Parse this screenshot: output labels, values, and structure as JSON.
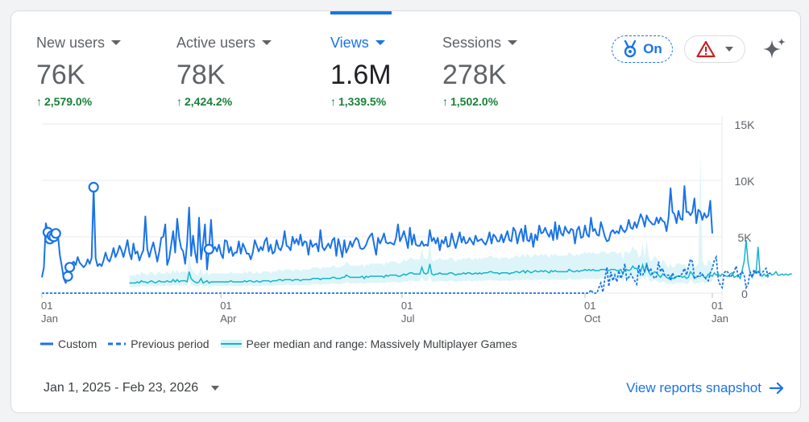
{
  "metrics": [
    {
      "label": "New users",
      "value": "76K",
      "change": "2,579.0%",
      "active": false
    },
    {
      "label": "Active users",
      "value": "78K",
      "change": "2,424.2%",
      "active": false
    },
    {
      "label": "Views",
      "value": "1.6M",
      "change": "1,339.5%",
      "active": true
    },
    {
      "label": "Sessions",
      "value": "278K",
      "change": "1,502.0%",
      "active": false
    }
  ],
  "toolbar": {
    "insights_label": "On",
    "warning_icon": "warning-icon",
    "ai_icon": "sparkle-icon"
  },
  "colors": {
    "primary": "#1a73e8",
    "positive": "#188038",
    "peer": "#12b5cb",
    "peer_band": "#d7f3f7",
    "warning": "#c5221f"
  },
  "legend": {
    "custom": "Custom",
    "previous": "Previous period",
    "peer": "Peer median and range: Massively Multiplayer Games"
  },
  "date_range": "Jan 1, 2025 - Feb 23, 2026",
  "snapshot_link": "View reports snapshot",
  "chart_data": {
    "type": "line",
    "y_ticks": [
      "15K",
      "10K",
      "5K",
      "0"
    ],
    "ylim": [
      0,
      15000
    ],
    "x_ticks": [
      {
        "day": "01",
        "month": "Jan"
      },
      {
        "day": "01",
        "month": "Apr"
      },
      {
        "day": "01",
        "month": "Jul"
      },
      {
        "day": "01",
        "month": "Oct"
      },
      {
        "day": "01",
        "month": "Jan"
      }
    ],
    "series": [
      {
        "name": "Custom",
        "style": "solid",
        "values": [
          1400,
          2300,
          6200,
          5400,
          4800,
          5100,
          5000,
          5300,
          5300,
          3400,
          2400,
          1300,
          900,
          1500,
          2300,
          2600,
          2800,
          2500,
          3200,
          2700,
          2500,
          2300,
          2500,
          3000,
          2600,
          3100,
          9400,
          3100,
          2400,
          2600,
          2400,
          2900,
          3600,
          3000,
          2800,
          3300,
          4000,
          3200,
          3600,
          4200,
          3800,
          3200,
          3900,
          4700,
          3600,
          3000,
          4400,
          3500,
          3700,
          2900,
          3400,
          3800,
          6800,
          3900,
          3200,
          3900,
          4500,
          3700,
          2800,
          3700,
          4900,
          5000,
          6100,
          2500,
          3100,
          4300,
          5500,
          3600,
          6600,
          4900,
          4000,
          3700,
          2600,
          4400,
          7600,
          3300,
          5100,
          3600,
          2700,
          6700,
          3000,
          4400,
          6100,
          2100,
          3900,
          6500,
          3800,
          4100,
          3700,
          4300,
          3500,
          3100,
          4700,
          4600,
          3600,
          4100,
          3300,
          3600,
          3600,
          4600,
          3500,
          4400,
          4000,
          3500,
          3500,
          3000,
          3600,
          4700,
          4200,
          3700,
          4100,
          3800,
          4600,
          4900,
          3700,
          4300,
          3500,
          3700,
          4700,
          4000,
          3800,
          4300,
          5500,
          4200,
          4100,
          3800,
          5000,
          4400,
          4800,
          4300,
          5200,
          4200,
          4600,
          4500,
          3400,
          4700,
          4100,
          4300,
          4400,
          3700,
          5600,
          4100,
          3800,
          4100,
          4400,
          4000,
          4700,
          4900,
          3300,
          4800,
          4100,
          3200,
          4700,
          3600,
          4000,
          4600,
          4100,
          4600,
          4900,
          4700,
          4000,
          3900,
          4000,
          4300,
          4800,
          5100,
          5300,
          4300,
          3400,
          4900,
          4400,
          4800,
          5300,
          4500,
          4400,
          4500,
          4400,
          4300,
          4900,
          6100,
          4600,
          5000,
          5500,
          4800,
          4000,
          5800,
          4300,
          5200,
          4300,
          4200,
          4200,
          4600,
          4200,
          4300,
          4200,
          5600,
          4600,
          4900,
          4400,
          4900,
          3800,
          4700,
          4400,
          5000,
          4100,
          4200,
          5300,
          4600,
          4000,
          4700,
          5400,
          4500,
          5000,
          4400,
          4500,
          4900,
          4600,
          4300,
          5100,
          4600,
          4700,
          4800,
          4500,
          4300,
          4700,
          5400,
          4400,
          5200,
          5000,
          4600,
          4600,
          5200,
          4500,
          5000,
          5500,
          4700,
          4600,
          5800,
          5500,
          4400,
          5200,
          5700,
          4600,
          6000,
          4700,
          4600,
          5300,
          4100,
          5200,
          4700,
          6000,
          5300,
          5400,
          5800,
          5300,
          5000,
          5600,
          4700,
          6300,
          4800,
          6000,
          5300,
          5100,
          5900,
          5500,
          5300,
          5700,
          5600,
          4400,
          5600,
          5900,
          4900,
          5000,
          6000,
          5200,
          5000,
          6700,
          5500,
          5700,
          5200,
          5100,
          6300,
          5700,
          5000,
          4600,
          4700,
          5400,
          5600,
          5300,
          5500,
          5300,
          6000,
          5600,
          5400,
          5700,
          6500,
          5800,
          5700,
          6300,
          5800,
          6400,
          7000,
          6600,
          5900,
          6900,
          6500,
          6300,
          6100,
          6100,
          6700,
          6200,
          6700,
          6400,
          6300,
          5500,
          6700,
          9300,
          7200,
          7000,
          6200,
          7300,
          6600,
          6500,
          9500,
          7200,
          7200,
          6900,
          7200,
          8400,
          6200,
          7400,
          7200,
          6500,
          7100,
          6700,
          6900,
          8200,
          5300
        ],
        "markers": [
          {
            "index": 3
          },
          {
            "index": 4
          },
          {
            "index": 5
          },
          {
            "index": 6
          },
          {
            "index": 7
          },
          {
            "index": 13
          },
          {
            "index": 14
          },
          {
            "index": 26
          },
          {
            "index": 84
          }
        ]
      },
      {
        "name": "Previous period",
        "style": "dashed",
        "values": [
          0,
          0,
          0,
          0,
          0,
          0,
          0,
          0,
          0,
          0,
          0,
          0,
          0,
          0,
          0,
          0,
          0,
          0,
          0,
          0,
          0,
          0,
          0,
          0,
          0,
          0,
          0,
          0,
          0,
          0,
          0,
          0,
          0,
          0,
          0,
          0,
          0,
          0,
          0,
          0,
          0,
          0,
          0,
          0,
          0,
          0,
          0,
          0,
          0,
          0,
          0,
          0,
          0,
          0,
          0,
          0,
          0,
          0,
          0,
          0,
          0,
          0,
          0,
          0,
          0,
          0,
          0,
          0,
          0,
          0,
          0,
          0,
          0,
          0,
          0,
          0,
          0,
          0,
          0,
          0,
          0,
          0,
          0,
          0,
          0,
          0,
          0,
          0,
          0,
          0,
          0,
          0,
          0,
          0,
          0,
          0,
          0,
          0,
          0,
          0,
          0,
          0,
          0,
          0,
          0,
          0,
          0,
          0,
          0,
          0,
          0,
          0,
          0,
          0,
          0,
          0,
          0,
          0,
          0,
          0,
          0,
          0,
          0,
          0,
          0,
          0,
          0,
          0,
          0,
          0,
          0,
          0,
          0,
          0,
          0,
          0,
          0,
          0,
          0,
          0,
          0,
          0,
          0,
          0,
          0,
          0,
          0,
          0,
          0,
          0,
          0,
          0,
          0,
          0,
          0,
          0,
          0,
          0,
          0,
          0,
          0,
          0,
          0,
          0,
          0,
          0,
          0,
          0,
          0,
          0,
          0,
          0,
          0,
          0,
          0,
          0,
          0,
          0,
          0,
          0,
          0,
          0,
          0,
          0,
          0,
          0,
          0,
          0,
          0,
          0,
          0,
          0,
          0,
          0,
          0,
          0,
          0,
          0,
          0,
          0,
          0,
          0,
          0,
          0,
          0,
          0,
          0,
          0,
          0,
          0,
          0,
          0,
          0,
          0,
          0,
          0,
          0,
          0,
          0,
          0,
          0,
          0,
          0,
          0,
          0,
          0,
          0,
          0,
          0,
          0,
          0,
          0,
          0,
          0,
          0,
          0,
          0,
          0,
          0,
          0,
          0,
          0,
          0,
          0,
          0,
          0,
          0,
          0,
          0,
          0,
          0,
          0,
          0,
          0,
          0,
          0,
          0,
          0,
          0,
          0,
          0,
          0,
          0,
          0,
          0,
          0,
          0,
          0,
          0,
          0,
          0,
          0,
          0,
          0,
          0,
          0,
          300,
          0,
          0,
          0,
          500,
          900,
          100,
          1300,
          2300,
          600,
          1900,
          1100,
          1600,
          1000,
          2000,
          1300,
          1700,
          2600,
          1200,
          1400,
          1700,
          1400,
          1100,
          800,
          2500,
          1600,
          1600,
          2000,
          2400,
          1900,
          2200,
          1600,
          1300,
          1500,
          2800,
          1900,
          2200,
          1600,
          1600,
          1600,
          1100,
          1800,
          1400,
          1400,
          1500,
          1500,
          1800,
          2200,
          1600,
          2300,
          3000,
          2800,
          1400,
          1500,
          1500,
          1800,
          1600,
          1500,
          1200,
          1100,
          1800,
          2200,
          2900,
          3200,
          1200,
          700,
          500,
          1800,
          2000,
          1800,
          1400,
          1600,
          1900,
          2400,
          1500,
          1700,
          1900,
          1600,
          500,
          800,
          1900,
          1400,
          2100,
          1700,
          2000,
          1600,
          1800,
          2000,
          2200,
          1500,
          1800
        ]
      },
      {
        "name": "Peer median",
        "style": "solid",
        "values": [
          0,
          0,
          0,
          0,
          0,
          0,
          0,
          0,
          0,
          0,
          0,
          0,
          0,
          0,
          0,
          0,
          0,
          0,
          0,
          0,
          0,
          0,
          0,
          0,
          0,
          0,
          0,
          0,
          0,
          0,
          0,
          0,
          0,
          0,
          0,
          0,
          0,
          0,
          0,
          0,
          0,
          0,
          0,
          0,
          900,
          900,
          900,
          900,
          1000,
          900,
          1100,
          1000,
          1000,
          900,
          1000,
          1100,
          1000,
          900,
          1000,
          1100,
          1000,
          1000,
          1000,
          1100,
          1000,
          1000,
          1200,
          1000,
          1200,
          1000,
          1100,
          1100,
          1100,
          1000,
          1900,
          1300,
          1100,
          1000,
          900,
          1000,
          1300,
          900,
          1000,
          1100,
          900,
          1000,
          1000,
          1000,
          1000,
          1000,
          1000,
          1000,
          1000,
          1000,
          1000,
          1100,
          1000,
          1000,
          1000,
          1000,
          1000,
          1000,
          1100,
          1000,
          1100,
          1100,
          1000,
          1000,
          1100,
          1000,
          1000,
          1100,
          1100,
          1100,
          1100,
          1000,
          1100,
          1100,
          1100,
          1200,
          1200,
          1100,
          1200,
          1200,
          1200,
          1200,
          1100,
          1200,
          1200,
          1200,
          1100,
          1200,
          1200,
          1200,
          1200,
          1200,
          1300,
          1300,
          1300,
          1300,
          1200,
          1300,
          1300,
          1300,
          1300,
          1300,
          1400,
          1400,
          1300,
          1300,
          1300,
          1400,
          1400,
          1600,
          1500,
          1400,
          1400,
          1400,
          1400,
          1400,
          1400,
          1500,
          1300,
          1500,
          1400,
          1500,
          1500,
          1500,
          1500,
          1500,
          1500,
          1500,
          1400,
          1600,
          1500,
          1600,
          1600,
          1600,
          1600,
          1500,
          1500,
          1600,
          1700,
          1600,
          1700,
          1800,
          1800,
          1700,
          1700,
          1700,
          1700,
          2300,
          1800,
          1700,
          1800,
          2600,
          1700,
          1600,
          1700,
          1700,
          1800,
          1700,
          1700,
          1700,
          1700,
          1800,
          1800,
          1700,
          1600,
          1700,
          1700,
          1700,
          1800,
          1700,
          1800,
          1800,
          1700,
          1700,
          1800,
          1700,
          1800,
          1700,
          1800,
          1800,
          1800,
          1900,
          1900,
          1800,
          1800,
          1800,
          1700,
          1800,
          1800,
          1800,
          1800,
          1700,
          1800,
          1800,
          1900,
          1900,
          1800,
          1900,
          2000,
          1800,
          2000,
          1900,
          1800,
          1900,
          2000,
          1900,
          1900,
          2000,
          1900,
          2000,
          1900,
          1800,
          2000,
          1900,
          2000,
          1900,
          1900,
          1900,
          1900,
          1900,
          1900,
          2100,
          2000,
          1900,
          1900,
          2000,
          1900,
          2000,
          2000,
          2100,
          2000,
          2100,
          2000,
          2100,
          2000,
          2000,
          2000,
          2100,
          2100,
          2100,
          2000,
          2000,
          2100,
          2100,
          2100,
          2000,
          2000,
          2100,
          1700,
          2100,
          2100,
          2000,
          2100,
          2400,
          2200,
          2200,
          1800,
          1900,
          2500,
          1800,
          2700,
          1900,
          1600,
          1700,
          1900,
          1800,
          1600,
          1400,
          1700,
          1600,
          1400,
          1300,
          1500,
          1300,
          1300,
          1500,
          1500,
          1500,
          1400,
          1500,
          1300,
          1400,
          1900,
          1700,
          1300,
          1400,
          1500,
          1500,
          1700,
          1400,
          1400,
          1700,
          1600,
          1500,
          1800,
          1600,
          1700,
          1500,
          1700,
          1600,
          1500,
          1500,
          1700,
          1800,
          1400,
          1500,
          1600,
          1300,
          2000,
          2800,
          4700,
          2700,
          1800,
          1400,
          1800,
          1800,
          4100,
          1600,
          1500,
          1700,
          1500,
          1700,
          1800,
          1600,
          1700,
          1900,
          1600,
          1600,
          1700,
          1600,
          1700,
          1600,
          1700,
          1700
        ]
      }
    ],
    "peer_range": {
      "low_ratio": 0.62,
      "high_ratio": 1.75,
      "spike_index": 331,
      "spike_value": 12500
    }
  }
}
